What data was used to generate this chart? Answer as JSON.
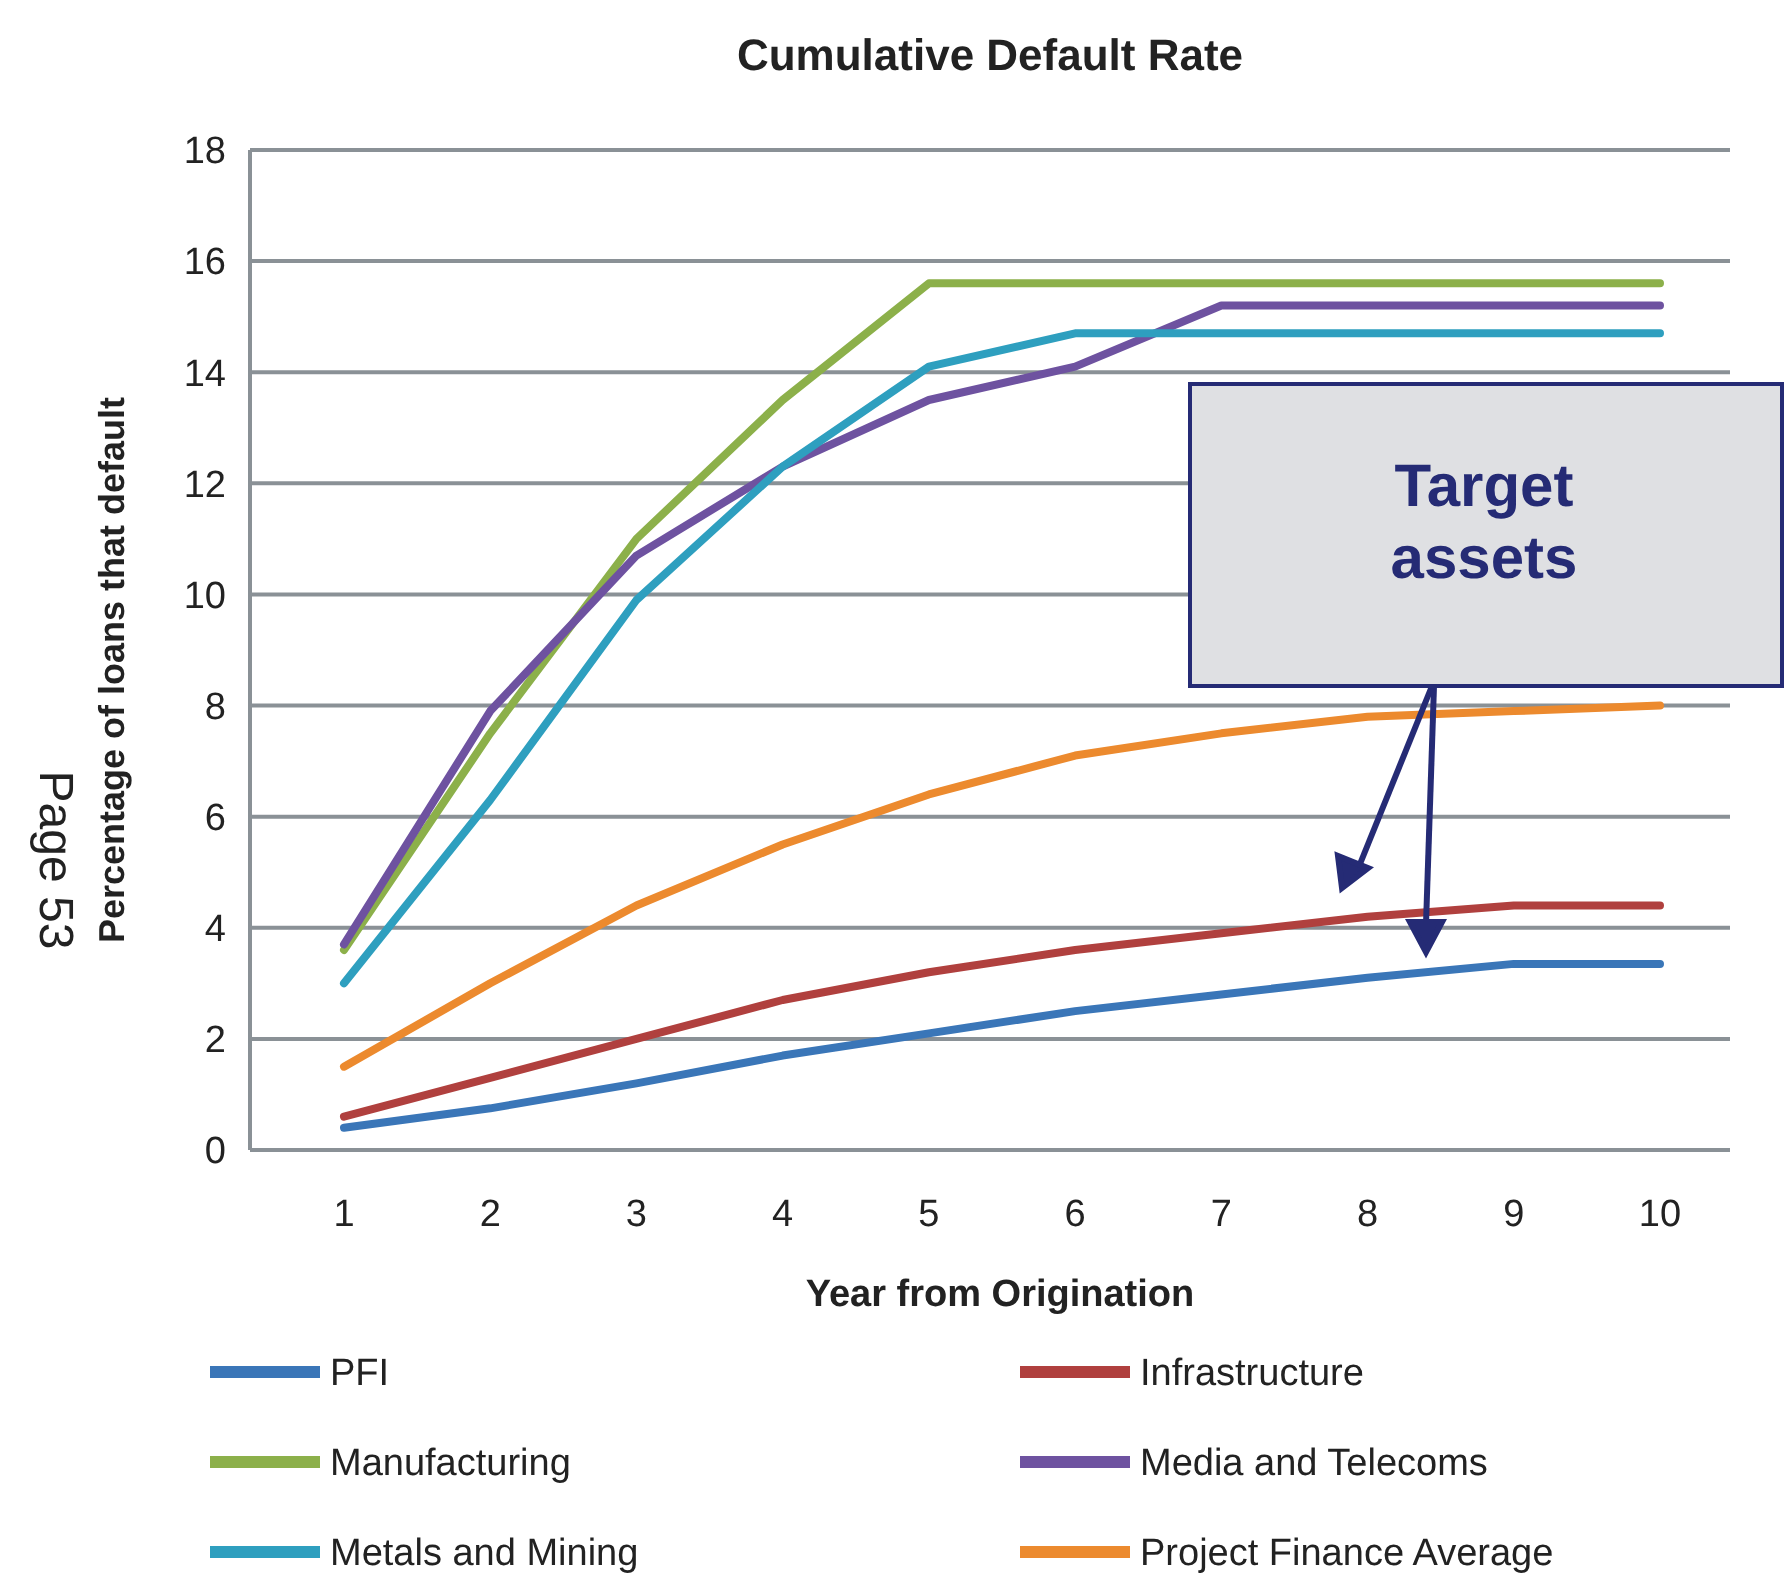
{
  "chart_data": {
    "type": "line",
    "title": "Cumulative Default Rate",
    "xlabel": "Year from Origination",
    "ylabel": "Percentage of loans that default",
    "categories": [
      "1",
      "2",
      "3",
      "4",
      "5",
      "6",
      "7",
      "8",
      "9",
      "10"
    ],
    "series": [
      {
        "name": "PFI",
        "color": "#3a76b8",
        "values": [
          0.4,
          0.75,
          1.2,
          1.7,
          2.1,
          2.5,
          2.8,
          3.1,
          3.35,
          3.35
        ]
      },
      {
        "name": "Infrastructure",
        "color": "#b0403e",
        "values": [
          0.6,
          1.3,
          2.0,
          2.7,
          3.2,
          3.6,
          3.9,
          4.2,
          4.4,
          4.4
        ]
      },
      {
        "name": "Manufacturing",
        "color": "#8cb04a",
        "values": [
          3.6,
          7.5,
          11.0,
          13.5,
          15.6,
          15.6,
          15.6,
          15.6,
          15.6,
          15.6
        ]
      },
      {
        "name": "Media and Telecoms",
        "color": "#6e52a0",
        "values": [
          3.7,
          7.9,
          10.7,
          12.3,
          13.5,
          14.1,
          15.2,
          15.2,
          15.2,
          15.2
        ]
      },
      {
        "name": "Metals and Mining",
        "color": "#2e9fbf",
        "values": [
          3.0,
          6.3,
          9.9,
          12.3,
          14.1,
          14.7,
          14.7,
          14.7,
          14.7,
          14.7
        ]
      },
      {
        "name": "Project Finance Average",
        "color": "#ec8a2e",
        "values": [
          1.5,
          3.0,
          4.4,
          5.5,
          6.4,
          7.1,
          7.5,
          7.8,
          7.9,
          8.0
        ]
      }
    ],
    "ylim": [
      0,
      18
    ],
    "yticks": [
      0,
      2,
      4,
      6,
      8,
      10,
      12,
      14,
      16,
      18
    ],
    "grid": "y",
    "legend": "bottom",
    "line_style": "solid",
    "marker": "none",
    "annotations": [
      "Target assets",
      "Page 53"
    ]
  }
}
